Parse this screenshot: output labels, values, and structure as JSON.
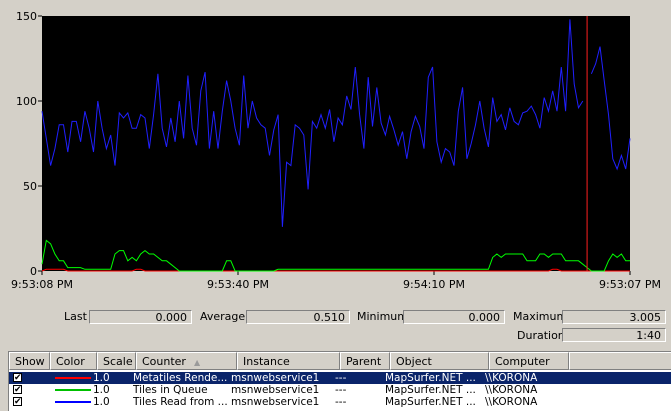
{
  "chart_data": {
    "type": "line",
    "ylim": [
      0,
      150
    ],
    "yticks": [
      0,
      50,
      100,
      150
    ],
    "xtick_labels": [
      "9:53:08 PM",
      "9:53:40 PM",
      "9:54:10 PM",
      "9:53:07 PM"
    ],
    "background": "#000000",
    "grid": false,
    "series": [
      {
        "color": "#2020ff",
        "values": [
          94,
          78,
          62,
          72,
          86,
          86,
          70,
          88,
          88,
          76,
          94,
          84,
          70,
          100,
          84,
          72,
          80,
          62,
          93,
          90,
          93,
          84,
          84,
          92,
          90,
          72,
          92,
          116,
          84,
          73,
          90,
          76,
          100,
          78,
          115,
          84,
          74,
          106,
          117,
          72,
          94,
          72,
          94,
          112,
          100,
          84,
          74,
          115,
          84,
          100,
          90,
          86,
          84,
          68,
          83,
          92,
          26,
          64,
          62,
          86,
          84,
          80,
          48,
          88,
          84,
          92,
          84,
          95,
          76,
          90,
          86,
          103,
          95,
          120,
          92,
          72,
          114,
          85,
          108,
          87,
          80,
          91,
          83,
          74,
          82,
          66,
          82,
          91,
          85,
          72,
          114,
          120,
          76,
          64,
          72,
          70,
          62,
          94,
          108,
          66,
          75,
          86,
          100,
          84,
          73,
          102,
          88,
          92,
          83,
          96,
          88,
          86,
          93,
          94,
          97,
          92,
          84,
          102,
          94,
          106,
          94,
          120,
          94,
          148,
          110,
          96,
          100,
          null,
          116,
          122,
          132,
          112,
          92,
          66,
          60,
          68,
          60,
          78
        ],
        "breaks": [
          127
        ]
      },
      {
        "color": "#00ff00",
        "values": [
          4,
          18,
          16,
          10,
          6,
          6,
          2,
          2,
          2,
          2,
          1,
          1,
          1,
          1,
          1,
          1,
          1,
          10,
          12,
          12,
          6,
          8,
          6,
          10,
          12,
          10,
          10,
          8,
          6,
          6,
          4,
          2,
          0,
          0,
          0,
          0,
          0,
          0,
          0,
          0,
          0,
          0,
          0,
          6,
          6,
          0,
          0,
          0,
          0,
          0,
          0,
          0,
          0,
          0,
          0,
          1,
          1,
          1,
          1,
          1,
          1,
          1,
          1,
          1,
          1,
          1,
          1,
          1,
          1,
          1,
          1,
          1,
          1,
          1,
          1,
          1,
          1,
          1,
          1,
          1,
          1,
          1,
          1,
          1,
          1,
          1,
          1,
          1,
          1,
          1,
          1,
          1,
          1,
          1,
          1,
          1,
          1,
          1,
          1,
          1,
          1,
          1,
          1,
          1,
          1,
          8,
          10,
          8,
          10,
          10,
          10,
          10,
          10,
          6,
          6,
          6,
          10,
          10,
          8,
          10,
          10,
          10,
          6,
          6,
          6,
          6,
          4,
          2,
          0,
          0,
          0,
          0,
          6,
          10,
          8,
          10,
          6,
          6
        ]
      },
      {
        "color": "#ff0000",
        "values": [
          0,
          1,
          1,
          1,
          1,
          1,
          0,
          0,
          0,
          0,
          0,
          0,
          0,
          0,
          0,
          0,
          0,
          0,
          0,
          0,
          0,
          0,
          1,
          1,
          0,
          0,
          0,
          0,
          0,
          0,
          0,
          0,
          0,
          0,
          0,
          0,
          0,
          0,
          0,
          0,
          0,
          0,
          0,
          0,
          0,
          0,
          0,
          0,
          0,
          0,
          0,
          0,
          0,
          0,
          0,
          0,
          0,
          0,
          0,
          0,
          0,
          0,
          0,
          0,
          0,
          0,
          0,
          0,
          0,
          0,
          0,
          0,
          0,
          0,
          0,
          0,
          0,
          0,
          0,
          0,
          0,
          0,
          0,
          0,
          0,
          0,
          0,
          0,
          0,
          0,
          0,
          0,
          0,
          0,
          0,
          0,
          0,
          0,
          0,
          0,
          0,
          0,
          0,
          0,
          0,
          0,
          0,
          0,
          0,
          0,
          0,
          0,
          0,
          0,
          0,
          0,
          0,
          0,
          0,
          1,
          1,
          0,
          0,
          0,
          0,
          0,
          0,
          0,
          0,
          0,
          0,
          0,
          0,
          0,
          0,
          0,
          0,
          0
        ]
      }
    ],
    "cursor_index": 127,
    "cursor_color": "#ff2020"
  },
  "stats": {
    "last_label": "Last",
    "last_value": "0.000",
    "average_label": "Average",
    "average_value": "0.510",
    "minimum_label": "Minimum",
    "minimum_value": "0.000",
    "maximum_label": "Maximum",
    "maximum_value": "3.005",
    "duration_label": "Duration",
    "duration_value": "1:40"
  },
  "counter_list": {
    "columns": [
      "Show",
      "Color",
      "Scale",
      "Counter",
      "Instance",
      "Parent",
      "Object",
      "Computer"
    ],
    "sort_indicator": "▲",
    "rows": [
      {
        "show": "✔",
        "color": "#ff0000",
        "scale": "1.0",
        "counter": "Metatiles Rende...",
        "instance": "msnwebservice1",
        "parent": "---",
        "object": "MapSurfer.NET ...",
        "computer": "\\\\KORONA"
      },
      {
        "show": "✔",
        "color": "#00c000",
        "scale": "1.0",
        "counter": "Tiles in Queue",
        "instance": "msnwebservice1",
        "parent": "---",
        "object": "MapSurfer.NET ...",
        "computer": "\\\\KORONA"
      },
      {
        "show": "✔",
        "color": "#0000ff",
        "scale": "1.0",
        "counter": "Tiles Read from ...",
        "instance": "msnwebservice1",
        "parent": "---",
        "object": "MapSurfer.NET ...",
        "computer": "\\\\KORONA"
      }
    ]
  }
}
